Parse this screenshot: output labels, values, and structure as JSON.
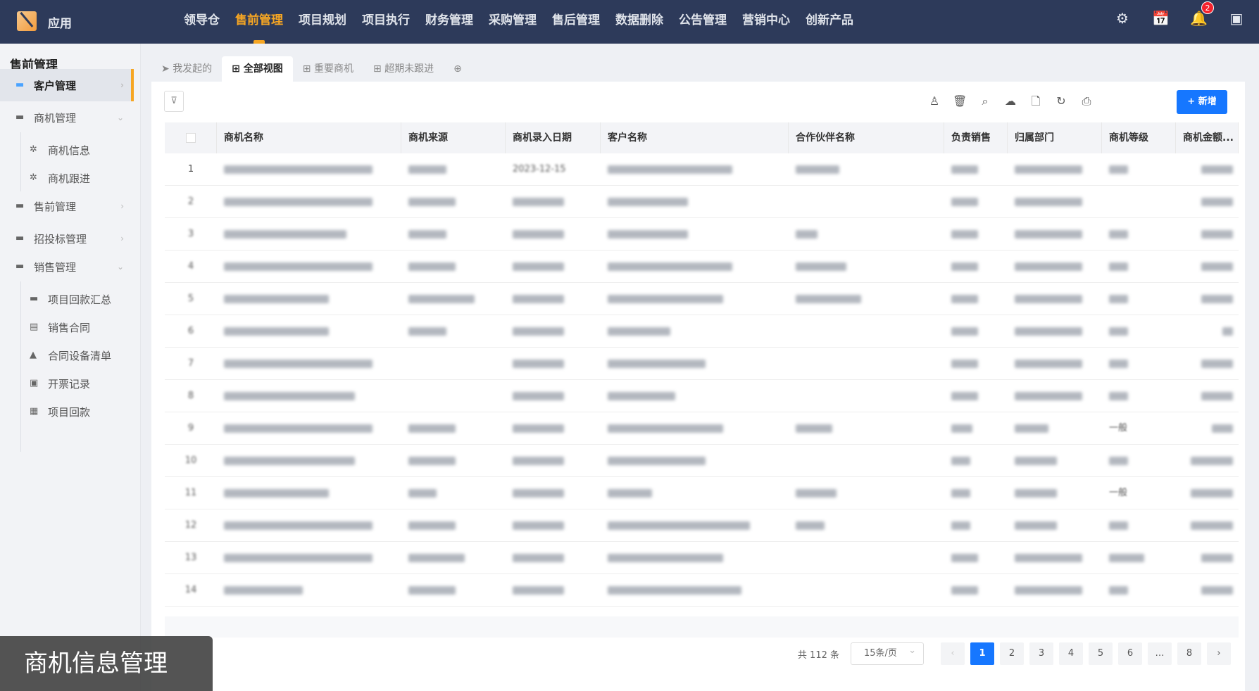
{
  "app": {
    "name": "应用"
  },
  "topnav": {
    "items": [
      "领导仓",
      "售前管理",
      "项目规划",
      "项目执行",
      "财务管理",
      "采购管理",
      "售后管理",
      "数据删除",
      "公告管理",
      "营销中心",
      "创新产品"
    ],
    "active_index": 1,
    "notification_count": "2"
  },
  "sidebar": {
    "title": "售前管理",
    "items": [
      {
        "label": "客户管理",
        "icon": "folder-icon",
        "level": 0,
        "active": true,
        "chevron": "›"
      },
      {
        "label": "商机管理",
        "icon": "folder-icon",
        "level": 0,
        "chevron": "⌄"
      },
      {
        "label": "商机信息",
        "icon": "gear-icon",
        "level": 1
      },
      {
        "label": "商机跟进",
        "icon": "gear-icon",
        "level": 1
      },
      {
        "label": "售前管理",
        "icon": "folder-icon",
        "level": 0,
        "chevron": "›"
      },
      {
        "label": "招投标管理",
        "icon": "folder-icon",
        "level": 0,
        "chevron": "›"
      },
      {
        "label": "销售管理",
        "icon": "folder-icon",
        "level": 0,
        "chevron": "⌄"
      },
      {
        "label": "项目回款汇总",
        "icon": "folder-icon",
        "level": 1
      },
      {
        "label": "销售合同",
        "icon": "contract-icon",
        "level": 1
      },
      {
        "label": "合同设备清单",
        "icon": "list-icon",
        "level": 1
      },
      {
        "label": "开票记录",
        "icon": "invoice-icon",
        "level": 1
      },
      {
        "label": "项目回款",
        "icon": "payment-icon",
        "level": 1
      }
    ]
  },
  "tabs": [
    {
      "label": "我发起的",
      "icon": "send-icon"
    },
    {
      "label": "全部视图",
      "icon": "grid-icon",
      "active": true
    },
    {
      "label": "重要商机",
      "icon": "grid-icon"
    },
    {
      "label": "超期未跟进",
      "icon": "grid-icon"
    }
  ],
  "toolbar": {
    "add_label": "+ 新增",
    "filter_icon": "filter-icon",
    "tools": [
      "user-icon",
      "delete-icon",
      "search-icon",
      "cloud-icon",
      "file-icon",
      "refresh-icon",
      "print-icon"
    ]
  },
  "table": {
    "columns": [
      "商机名称",
      "商机来源",
      "商机录入日期",
      "客户名称",
      "合作伙伴名称",
      "负责销售",
      "归属部门",
      "商机等级",
      "商机金额..."
    ],
    "rows": [
      {
        "no": "1",
        "date": "2023-12-15"
      },
      {
        "no": "2"
      },
      {
        "no": "3"
      },
      {
        "no": "4"
      },
      {
        "no": "5"
      },
      {
        "no": "6"
      },
      {
        "no": "7"
      },
      {
        "no": "8"
      },
      {
        "no": "9",
        "level": "一般"
      },
      {
        "no": "10"
      },
      {
        "no": "11",
        "level": "一般"
      },
      {
        "no": "12"
      },
      {
        "no": "13"
      },
      {
        "no": "14"
      }
    ]
  },
  "pagination": {
    "total": "共 112 条",
    "page_size": "15条/页",
    "prev": "‹",
    "next": "›",
    "pages": [
      "1",
      "2",
      "3",
      "4",
      "5",
      "6",
      "…",
      "8"
    ],
    "current": "1"
  },
  "caption": "商机信息管理",
  "colors": {
    "nav_bg": "#2d3a5a",
    "accent": "#f6a623",
    "primary": "#1677ff"
  }
}
